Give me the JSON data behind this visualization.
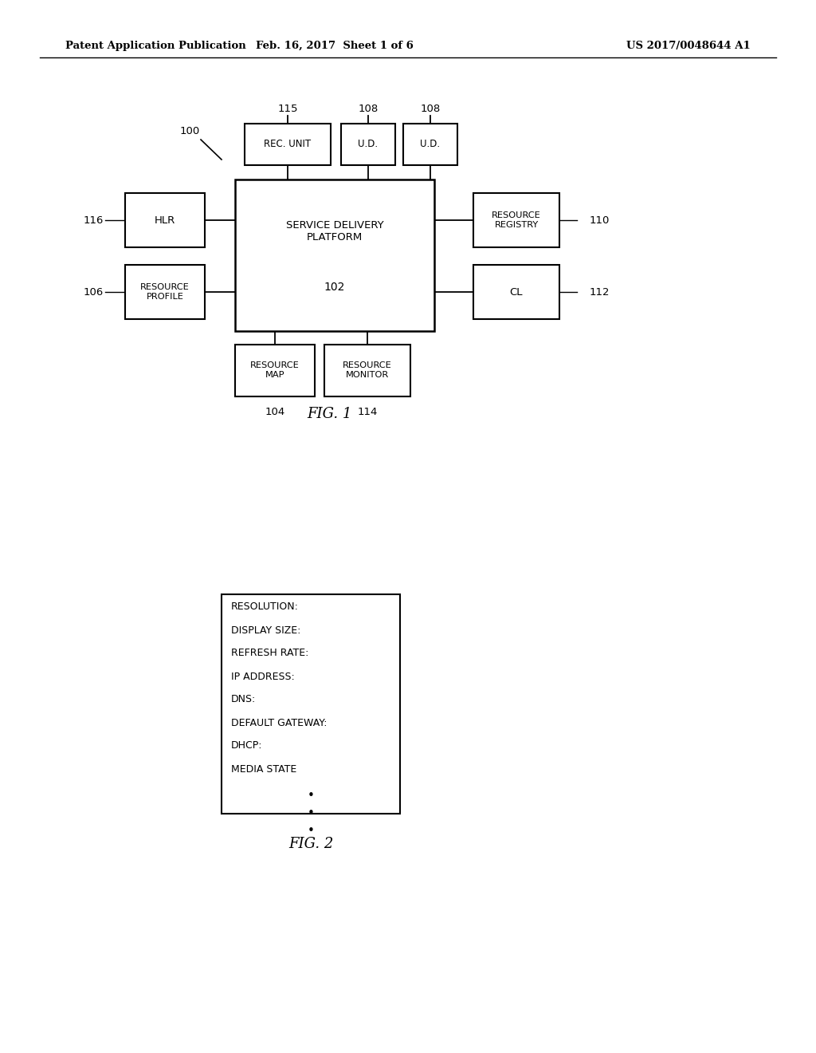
{
  "bg_color": "#ffffff",
  "header_left": "Patent Application Publication",
  "header_mid": "Feb. 16, 2017  Sheet 1 of 6",
  "header_right": "US 2017/0048644 A1",
  "fig2_lines": [
    "RESOLUTION:",
    "DISPLAY SIZE:",
    "REFRESH RATE:",
    "IP ADDRESS:",
    "DNS:",
    "DEFAULT GATEWAY:",
    "DHCP:",
    "MEDIA STATE"
  ]
}
